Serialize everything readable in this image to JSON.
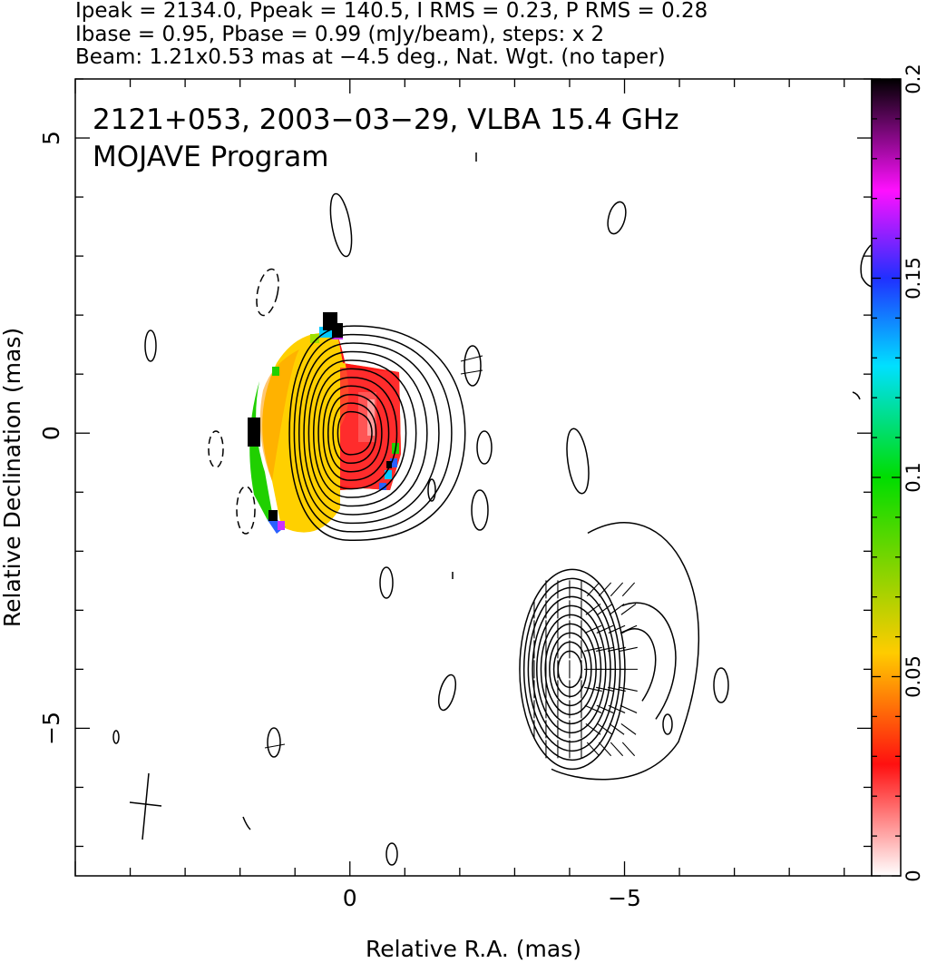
{
  "header": {
    "line1": "Ipeak = 2134.0, Ppeak = 140.5, I RMS = 0.23, P RMS = 0.28",
    "line2": "Ibase = 0.95, Pbase = 0.99 (mJy/beam), steps: x 2",
    "line3": "Beam: 1.21x0.53 mas at −4.5 deg., Nat. Wgt. (no taper)"
  },
  "plot": {
    "title_line1": "2121+053, 2003−03−29, VLBA 15.4 GHz",
    "title_line2": "MOJAVE Program"
  },
  "chart_data": {
    "type": "contour",
    "xlabel": "Relative R.A. (mas)",
    "ylabel": "Relative Declination (mas)",
    "xlim": [
      5.0,
      -9.5
    ],
    "ylim": [
      -7.5,
      6.0
    ],
    "x_ticks": [
      0,
      -5
    ],
    "x_tick_labels": [
      "0",
      "−5"
    ],
    "y_ticks": [
      5,
      0,
      -5
    ],
    "y_tick_labels": [
      "5",
      "0",
      "−5"
    ],
    "colorbar": {
      "range": [
        0,
        0.2
      ],
      "ticks": [
        0,
        0.05,
        0.1,
        0.15,
        0.2
      ],
      "tick_labels": [
        "0",
        "0.05",
        "0.1",
        "0.15",
        "0.2"
      ],
      "colors": [
        "#ffffff",
        "#ff1010",
        "#ffcc00",
        "#00dd00",
        "#00e0ff",
        "#2030ff",
        "#ff10ff",
        "#000000"
      ]
    },
    "total_intensity_contours": {
      "center": [
        0.0,
        0.0
      ],
      "levels_mJy_per_beam": [
        0.95,
        1.9,
        3.8,
        7.6,
        15.2,
        30.4,
        60.8,
        121.6,
        243.2,
        486.4,
        972.8
      ],
      "peak_mJy_per_beam": 2134.0
    },
    "polarization_contours": {
      "center": [
        -4.0,
        -4.0
      ],
      "peak_mJy_per_beam": 140.5
    },
    "beam": {
      "major_mas": 1.21,
      "minor_mas": 0.53,
      "pa_deg": -4.5
    }
  }
}
